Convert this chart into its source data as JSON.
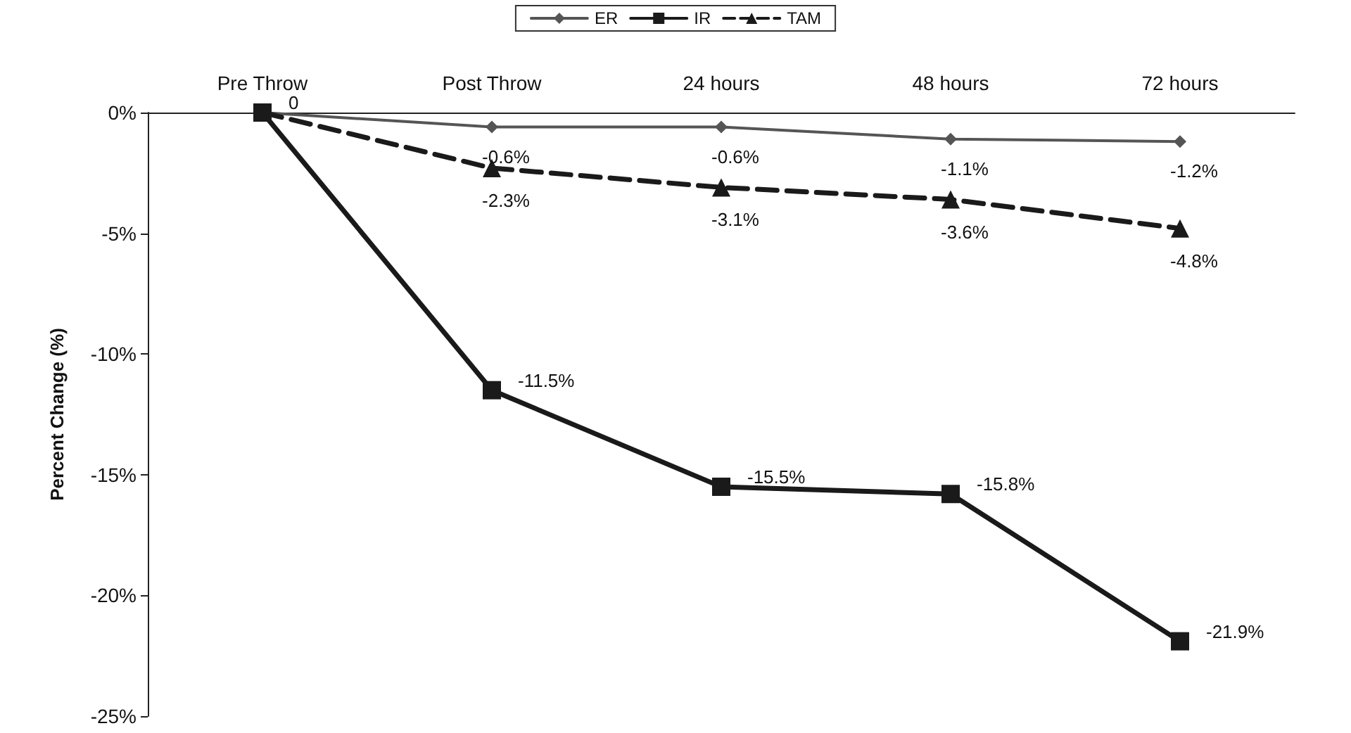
{
  "chart_data": {
    "type": "line",
    "ylabel": "Percent Change (%)",
    "categories": [
      "Pre Throw",
      "Post Throw",
      "24 hours",
      "48 hours",
      "72 hours"
    ],
    "series": [
      {
        "name": "ER",
        "color": "#555555",
        "marker": "diamond",
        "line_style": "solid",
        "values": [
          0,
          -0.6,
          -0.6,
          -1.1,
          -1.2
        ],
        "value_labels": [
          null,
          "-0.6%",
          "-0.6%",
          "-1.1%",
          "-1.2%"
        ]
      },
      {
        "name": "IR",
        "color": "#1a1a1a",
        "marker": "square",
        "line_style": "solid",
        "values": [
          0,
          -11.5,
          -15.5,
          -15.8,
          -21.9
        ],
        "value_labels": [
          "0",
          "-11.5%",
          "-15.5%",
          "-15.8%",
          "-21.9%"
        ]
      },
      {
        "name": "TAM",
        "color": "#1a1a1a",
        "marker": "triangle",
        "line_style": "dashed",
        "values": [
          0,
          -2.3,
          -3.1,
          -3.6,
          -4.8
        ],
        "value_labels": [
          null,
          "-2.3%",
          "-3.1%",
          "-3.6%",
          "-4.8%"
        ]
      }
    ],
    "ylim": [
      -25,
      0
    ],
    "yticks": [
      {
        "value": 0,
        "label": "0%"
      },
      {
        "value": -5,
        "label": "-5%"
      },
      {
        "value": -10,
        "label": "-10%"
      },
      {
        "value": -15,
        "label": "-15%"
      },
      {
        "value": -20,
        "label": "-20%"
      },
      {
        "value": -25,
        "label": "-25%"
      }
    ],
    "grid": false,
    "legend": "top"
  }
}
